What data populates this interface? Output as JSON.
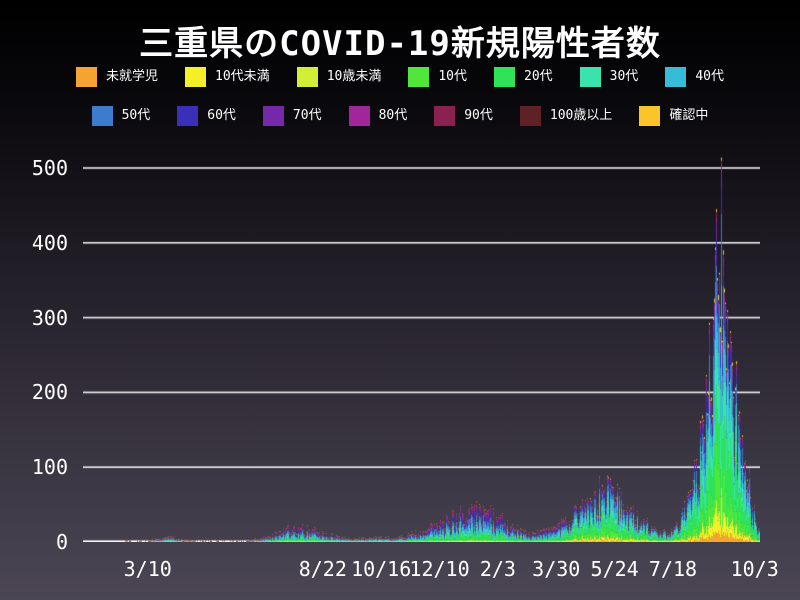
{
  "title": "三重県のCOVID-19新規陽性者数",
  "legend": {
    "rows": [
      [
        0,
        1,
        2,
        3,
        4,
        5,
        6
      ],
      [
        7,
        8,
        9,
        10,
        11,
        12,
        13
      ]
    ]
  },
  "chart_data": {
    "type": "bar",
    "stacked": true,
    "title": "三重県のCOVID-19新規陽性者数",
    "grid": {
      "on": true,
      "color": "#ffffff",
      "y_values": [
        0,
        100,
        200,
        300,
        400,
        500
      ]
    },
    "y_ticks": [
      "0",
      "100",
      "200",
      "300",
      "400",
      "500"
    ],
    "ylim": [
      0,
      525
    ],
    "x_ticks": [
      {
        "label": "3/10",
        "day": 61
      },
      {
        "label": "8/22",
        "day": 226
      },
      {
        "label": "10/16",
        "day": 281
      },
      {
        "label": "12/10",
        "day": 336
      },
      {
        "label": "2/3",
        "day": 391
      },
      {
        "label": "3/30",
        "day": 446
      },
      {
        "label": "5/24",
        "day": 501
      },
      {
        "label": "7/18",
        "day": 556
      },
      {
        "label": "10/3",
        "day": 633
      }
    ],
    "total_days": 638,
    "era_split_day": 455,
    "series": [
      {
        "name": "未就学児",
        "color": "#f6a431",
        "share_early": 0.01,
        "share_late": 0.03
      },
      {
        "name": "10代未満",
        "color": "#f5ef27",
        "share_early": 0.02,
        "share_late": 0.05
      },
      {
        "name": "10歳未満",
        "color": "#d2ef35",
        "share_early": 0.01,
        "share_late": 0.02
      },
      {
        "name": "10代",
        "color": "#4fe83a",
        "share_early": 0.06,
        "share_late": 0.11
      },
      {
        "name": "20代",
        "color": "#2ee357",
        "share_early": 0.17,
        "share_late": 0.22
      },
      {
        "name": "30代",
        "color": "#3ae3ad",
        "share_early": 0.13,
        "share_late": 0.17
      },
      {
        "name": "40代",
        "color": "#36bcd9",
        "share_early": 0.14,
        "share_late": 0.15
      },
      {
        "name": "50代",
        "color": "#3d7ccc",
        "share_early": 0.14,
        "share_late": 0.11
      },
      {
        "name": "60代",
        "color": "#3a2fb8",
        "share_early": 0.1,
        "share_late": 0.05
      },
      {
        "name": "70代",
        "color": "#7329a8",
        "share_early": 0.09,
        "share_late": 0.04
      },
      {
        "name": "80代",
        "color": "#a1259b",
        "share_early": 0.07,
        "share_late": 0.025
      },
      {
        "name": "90代",
        "color": "#8a2150",
        "share_early": 0.04,
        "share_late": 0.01
      },
      {
        "name": "100歳以上",
        "color": "#5e2125",
        "share_early": 0.01,
        "share_late": 0.002
      },
      {
        "name": "確認中",
        "color": "#fbc527",
        "share_early": 0.01,
        "share_late": 0.013
      }
    ],
    "daily_total_envelope": [
      [
        0,
        0
      ],
      [
        38,
        0
      ],
      [
        61,
        2
      ],
      [
        75,
        5
      ],
      [
        82,
        7
      ],
      [
        90,
        3
      ],
      [
        113,
        1
      ],
      [
        151,
        1
      ],
      [
        175,
        6
      ],
      [
        190,
        15
      ],
      [
        203,
        19
      ],
      [
        226,
        12
      ],
      [
        240,
        6
      ],
      [
        259,
        4
      ],
      [
        281,
        7
      ],
      [
        292,
        5
      ],
      [
        311,
        11
      ],
      [
        325,
        17
      ],
      [
        344,
        28
      ],
      [
        363,
        43
      ],
      [
        380,
        38
      ],
      [
        391,
        33
      ],
      [
        405,
        18
      ],
      [
        420,
        10
      ],
      [
        435,
        13
      ],
      [
        446,
        18
      ],
      [
        462,
        34
      ],
      [
        476,
        55
      ],
      [
        490,
        68
      ],
      [
        501,
        60
      ],
      [
        512,
        42
      ],
      [
        526,
        28
      ],
      [
        540,
        16
      ],
      [
        552,
        11
      ],
      [
        556,
        16
      ],
      [
        565,
        35
      ],
      [
        574,
        70
      ],
      [
        582,
        120
      ],
      [
        589,
        200
      ],
      [
        594,
        300
      ],
      [
        597,
        445
      ],
      [
        599,
        360
      ],
      [
        601,
        514
      ],
      [
        603,
        390
      ],
      [
        607,
        310
      ],
      [
        612,
        240
      ],
      [
        617,
        170
      ],
      [
        623,
        105
      ],
      [
        629,
        60
      ],
      [
        633,
        30
      ],
      [
        638,
        18
      ]
    ]
  }
}
